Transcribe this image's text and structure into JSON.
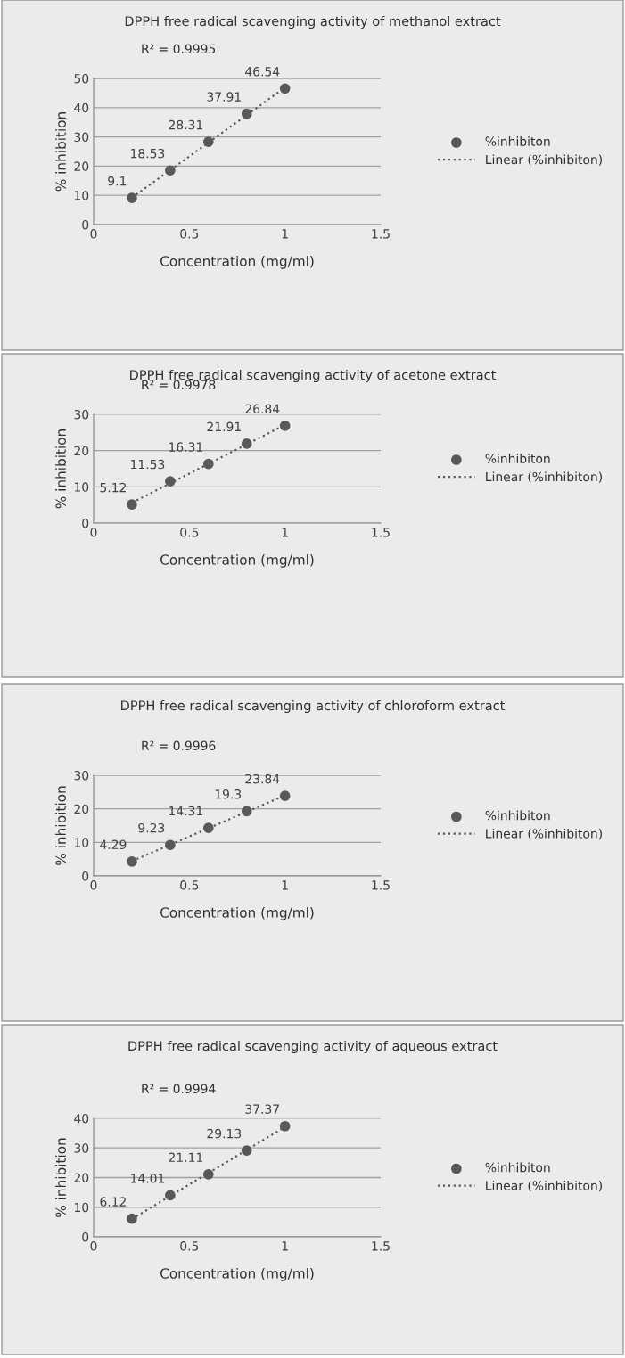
{
  "chart_data": [
    {
      "type": "scatter",
      "title": "DPPH free radical scavenging activity of methanol extract",
      "xlabel": "Concentration (mg/ml)",
      "ylabel": "% inhibition",
      "annotations": [
        "R² = 0.9995"
      ],
      "xlim": [
        0,
        1.5
      ],
      "xticks": [
        0,
        0.5,
        1,
        1.5
      ],
      "ylim": [
        0,
        50
      ],
      "yticks": [
        0,
        10,
        20,
        30,
        40,
        50
      ],
      "grid": "y",
      "legend": "right",
      "series": [
        {
          "name": "%inhibiton",
          "type": "scatter",
          "marker": "circle",
          "color": "#595959",
          "x": [
            0.2,
            0.4,
            0.6,
            0.8,
            1
          ],
          "values": [
            9.1,
            18.53,
            28.31,
            37.91,
            46.54
          ],
          "value_labels": [
            "9.1",
            "18.53",
            "28.31",
            "37.91",
            "46.54"
          ]
        },
        {
          "name": "Linear (%inhibiton)",
          "type": "line",
          "line_style": "dotted",
          "color": "#595959",
          "x": [
            0.2,
            1
          ],
          "values": [
            9.2,
            46.9
          ]
        }
      ]
    },
    {
      "type": "scatter",
      "title": "DPPH free radical scavenging activity of acetone extract",
      "xlabel": "Concentration (mg/ml)",
      "ylabel": "% inhibition",
      "annotations": [
        "R² = 0.9978"
      ],
      "xlim": [
        0,
        1.5
      ],
      "xticks": [
        0,
        0.5,
        1,
        1.5
      ],
      "ylim": [
        0,
        30
      ],
      "yticks": [
        0,
        10,
        20,
        30
      ],
      "grid": "y",
      "legend": "right",
      "series": [
        {
          "name": "%inhibiton",
          "type": "scatter",
          "marker": "circle",
          "color": "#595959",
          "x": [
            0.2,
            0.4,
            0.6,
            0.8,
            1
          ],
          "values": [
            5.12,
            11.53,
            16.31,
            21.91,
            26.84
          ],
          "value_labels": [
            "5.12",
            "11.53",
            "16.31",
            "21.91",
            "26.84"
          ]
        },
        {
          "name": "Linear (%inhibiton)",
          "type": "line",
          "line_style": "dotted",
          "color": "#595959",
          "x": [
            0.2,
            1
          ],
          "values": [
            5.6,
            27.1
          ]
        }
      ]
    },
    {
      "type": "scatter",
      "title": "DPPH free radical scavenging activity of chloroform extract",
      "xlabel": "Concentration (mg/ml)",
      "ylabel": "% inhibition",
      "annotations": [
        "R² = 0.9996"
      ],
      "xlim": [
        0,
        1.5
      ],
      "xticks": [
        0,
        0.5,
        1,
        1.5
      ],
      "ylim": [
        0,
        30
      ],
      "yticks": [
        0,
        10,
        20,
        30
      ],
      "grid": "y",
      "legend": "right",
      "series": [
        {
          "name": "%inhibiton",
          "type": "scatter",
          "marker": "circle",
          "color": "#595959",
          "x": [
            0.2,
            0.4,
            0.6,
            0.8,
            1
          ],
          "values": [
            4.29,
            9.23,
            14.31,
            19.3,
            23.84
          ],
          "value_labels": [
            "4.29",
            "9.23",
            "14.31",
            "19.3",
            "23.84"
          ]
        },
        {
          "name": "Linear (%inhibiton)",
          "type": "line",
          "line_style": "dotted",
          "color": "#595959",
          "x": [
            0.2,
            1
          ],
          "values": [
            4.4,
            24.0
          ]
        }
      ]
    },
    {
      "type": "scatter",
      "title": "DPPH free radical scavenging activity of aqueous extract",
      "xlabel": "Concentration (mg/ml)",
      "ylabel": "% inhibition",
      "annotations": [
        "R² = 0.9994"
      ],
      "xlim": [
        0,
        1.5
      ],
      "xticks": [
        0,
        0.5,
        1,
        1.5
      ],
      "ylim": [
        0,
        40
      ],
      "yticks": [
        0,
        10,
        20,
        30,
        40
      ],
      "grid": "y",
      "legend": "right",
      "series": [
        {
          "name": "%inhibiton",
          "type": "scatter",
          "marker": "circle",
          "color": "#595959",
          "x": [
            0.2,
            0.4,
            0.6,
            0.8,
            1
          ],
          "values": [
            6.12,
            14.01,
            21.11,
            29.13,
            37.37
          ],
          "value_labels": [
            "6.12",
            "14.01",
            "21.11",
            "29.13",
            "37.37"
          ]
        },
        {
          "name": "Linear (%inhibiton)",
          "type": "line",
          "line_style": "dotted",
          "color": "#595959",
          "x": [
            0.2,
            1
          ],
          "values": [
            6.0,
            37.1
          ]
        }
      ]
    }
  ]
}
